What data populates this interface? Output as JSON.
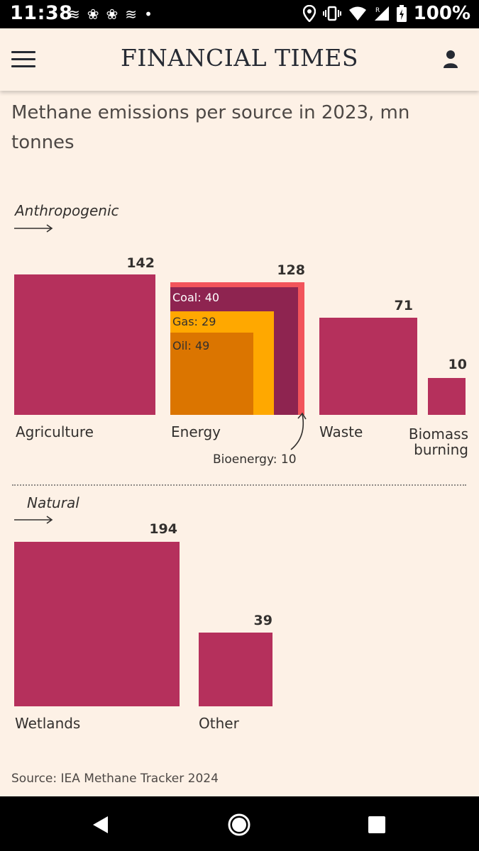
{
  "status_bar": {
    "time": "11:38",
    "battery": "100%",
    "notification_icons": [
      "≋",
      "❀",
      "❀",
      "≋",
      "•"
    ]
  },
  "app_bar": {
    "logo": "FINANCIAL TIMES"
  },
  "colors": {
    "background": "#fdf1e6",
    "bar": "#b5305c",
    "coal": "#8e2450",
    "gas": "#ffa800",
    "oil": "#db7500",
    "bioenergy": "#f2545b"
  },
  "chart_data": {
    "type": "square-area",
    "title": "Methane emissions per source in 2023, mn tonnes",
    "groups": [
      {
        "name": "Anthropogenic",
        "items": [
          {
            "name": "Agriculture",
            "value": 142
          },
          {
            "name": "Energy",
            "value": 128,
            "breakdown": [
              {
                "name": "Coal",
                "value": 40,
                "label": "Coal: 40"
              },
              {
                "name": "Gas",
                "value": 29,
                "label": "Gas: 29"
              },
              {
                "name": "Oil",
                "value": 49,
                "label": "Oil: 49"
              },
              {
                "name": "Bioenergy",
                "value": 10,
                "label": "Bioenergy: 10"
              }
            ]
          },
          {
            "name": "Waste",
            "value": 71
          },
          {
            "name": "Biomass burning",
            "label_lines": [
              "Biomass",
              "burning"
            ],
            "value": 10
          }
        ]
      },
      {
        "name": "Natural",
        "items": [
          {
            "name": "Wetlands",
            "value": 194
          },
          {
            "name": "Other",
            "value": 39
          }
        ]
      }
    ],
    "source": "Source: IEA Methane Tracker 2024"
  }
}
